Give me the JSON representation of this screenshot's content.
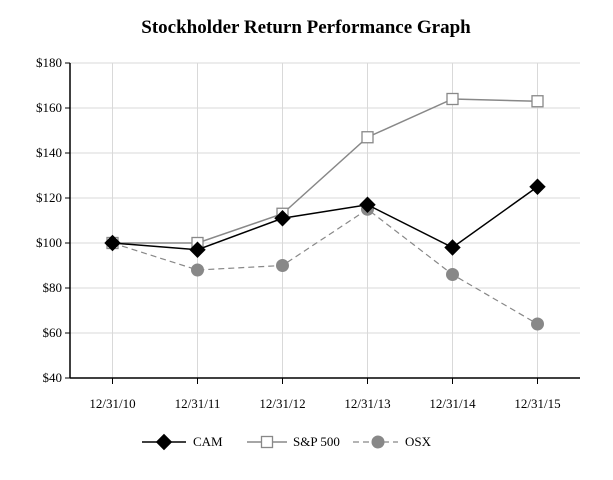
{
  "chart_data": {
    "type": "line",
    "title": "Stockholder Return Performance Graph",
    "xlabel": "",
    "ylabel": "",
    "categories": [
      "12/31/10",
      "12/31/11",
      "12/31/12",
      "12/31/13",
      "12/31/14",
      "12/31/15"
    ],
    "ylim": [
      40,
      180
    ],
    "yticks": [
      40,
      60,
      80,
      100,
      120,
      140,
      160,
      180
    ],
    "ytick_labels": [
      "$40",
      "$60",
      "$80",
      "$100",
      "$120",
      "$140",
      "$160",
      "$180"
    ],
    "grid": true,
    "legend_position": "bottom",
    "series": [
      {
        "name": "CAM",
        "values": [
          100,
          97,
          111,
          117,
          98,
          125
        ],
        "color": "#000000",
        "marker": "diamond-filled",
        "line": "solid"
      },
      {
        "name": "S&P 500",
        "values": [
          100,
          100,
          113,
          147,
          164,
          163
        ],
        "color": "#888888",
        "marker": "square-open",
        "line": "solid"
      },
      {
        "name": "OSX",
        "values": [
          100,
          88,
          90,
          115,
          86,
          64
        ],
        "color": "#888888",
        "marker": "circle-filled",
        "line": "dashed"
      }
    ]
  }
}
